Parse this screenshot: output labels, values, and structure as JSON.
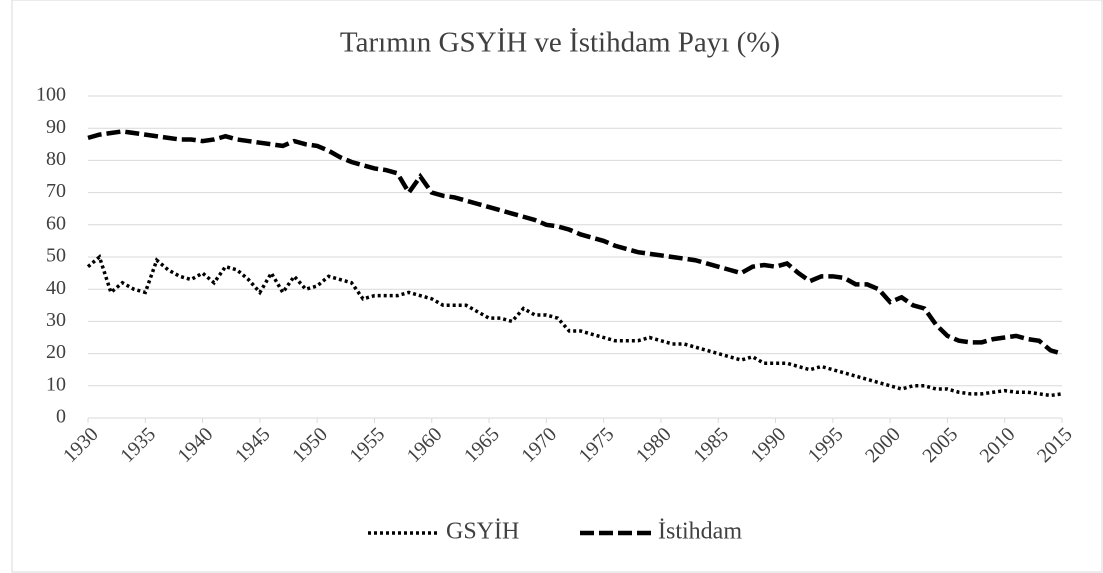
{
  "chart_data": {
    "type": "line",
    "title": "Tarımın GSYİH ve İstihdam Payı (%)",
    "x": [
      1930,
      1931,
      1932,
      1933,
      1934,
      1935,
      1936,
      1937,
      1938,
      1939,
      1940,
      1941,
      1942,
      1943,
      1944,
      1945,
      1946,
      1947,
      1948,
      1949,
      1950,
      1951,
      1952,
      1953,
      1954,
      1955,
      1956,
      1957,
      1958,
      1959,
      1960,
      1961,
      1962,
      1963,
      1964,
      1965,
      1966,
      1967,
      1968,
      1969,
      1970,
      1971,
      1972,
      1973,
      1974,
      1975,
      1976,
      1977,
      1978,
      1979,
      1980,
      1981,
      1982,
      1983,
      1984,
      1985,
      1986,
      1987,
      1988,
      1989,
      1990,
      1991,
      1992,
      1993,
      1994,
      1995,
      1996,
      1997,
      1998,
      1999,
      2000,
      2001,
      2002,
      2003,
      2004,
      2005,
      2006,
      2007,
      2008,
      2009,
      2010,
      2011,
      2012,
      2013,
      2014,
      2015
    ],
    "series": [
      {
        "name": "GSYİH",
        "color": "#000000",
        "dash": "dotted",
        "values": [
          47,
          50,
          39,
          42,
          40,
          39,
          49,
          46,
          44,
          43,
          45,
          42,
          47,
          46,
          43,
          39,
          45,
          39,
          44,
          40,
          41,
          44,
          43,
          42,
          37,
          38,
          38,
          38,
          39,
          38,
          37,
          35,
          35,
          35,
          33,
          31,
          31,
          30,
          34,
          32,
          32,
          31,
          27,
          27,
          26,
          25,
          24,
          24,
          24,
          25,
          24,
          23,
          23,
          22,
          21,
          20,
          19,
          18,
          19,
          17,
          17,
          17,
          16,
          15,
          16,
          15,
          14,
          13,
          12,
          11,
          10,
          9,
          10,
          10,
          9,
          9,
          8,
          7.5,
          7.5,
          8,
          8.5,
          8,
          8,
          7.5,
          7,
          7.5
        ]
      },
      {
        "name": "İstihdam",
        "color": "#000000",
        "dash": "dashed",
        "values": [
          87,
          88,
          88.5,
          89,
          88.5,
          88,
          87.5,
          87,
          86.5,
          86.5,
          86,
          86.5,
          87.5,
          86.5,
          86,
          85.5,
          85,
          84.5,
          86,
          85,
          84.5,
          83,
          81,
          79.5,
          78.5,
          77.5,
          77,
          76,
          70,
          75,
          70,
          69,
          68.5,
          67.5,
          66.5,
          65.5,
          64.5,
          63.5,
          62.5,
          61.5,
          60,
          59.5,
          58.5,
          57,
          56,
          55,
          53.5,
          52.5,
          51.5,
          51,
          50.5,
          50,
          49.5,
          49,
          48,
          47,
          46,
          45,
          47,
          47.5,
          47,
          48,
          45,
          42.5,
          44,
          44,
          43.5,
          41.5,
          41.5,
          40,
          36,
          37.5,
          35,
          34,
          29,
          25.5,
          24,
          23.5,
          23.5,
          24.5,
          25,
          25.5,
          24.5,
          24,
          21,
          20
        ]
      }
    ],
    "xlim": [
      1930,
      2015
    ],
    "xticks": [
      1930,
      1935,
      1940,
      1945,
      1950,
      1955,
      1960,
      1965,
      1970,
      1975,
      1980,
      1985,
      1990,
      1995,
      2000,
      2005,
      2010,
      2015
    ],
    "ylim": [
      0,
      100
    ],
    "yticks": [
      0,
      10,
      20,
      30,
      40,
      50,
      60,
      70,
      80,
      90,
      100
    ],
    "grid": true,
    "legend": "bottom"
  }
}
